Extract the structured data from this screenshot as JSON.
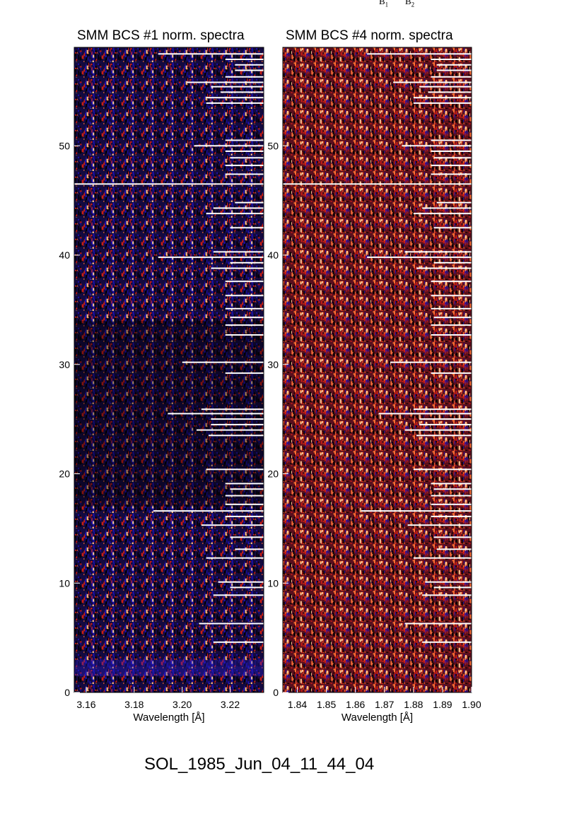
{
  "top_labels": {
    "b1": "B",
    "b1_sub": "1",
    "b2": "B",
    "b2_sub": "2"
  },
  "footer": "SOL_1985_Jun_04_11_44_04",
  "chart_data": [
    {
      "type": "heatmap",
      "title": "SMM BCS #1 norm. spectra",
      "xlabel": "Wavelength [Å]",
      "ylabel": "",
      "xlim": [
        3.155,
        3.234
      ],
      "ylim": [
        0,
        59
      ],
      "x_ticks": [
        3.16,
        3.18,
        3.2,
        3.22
      ],
      "x_tick_labels": [
        "3.16",
        "3.18",
        "3.20",
        "3.22"
      ],
      "y_ticks": [
        0,
        10,
        20,
        30,
        40,
        50
      ],
      "y_tick_labels": [
        "0",
        "10",
        "20",
        "30",
        "40",
        "50"
      ],
      "colors": [
        "#000000",
        "#1a10b0",
        "#c81e14",
        "#ff7030",
        "#ffc890"
      ],
      "missing_rows": [
        {
          "row": 58.4,
          "x_start": 3.19
        },
        {
          "row": 57.9,
          "x_start": 3.218
        },
        {
          "row": 57.4,
          "x_start": 3.222
        },
        {
          "row": 56.9,
          "x_start": 3.222
        },
        {
          "row": 56.3,
          "x_start": 3.218
        },
        {
          "row": 55.8,
          "x_start": 3.202
        },
        {
          "row": 55.4,
          "x_start": 3.212
        },
        {
          "row": 54.9,
          "x_start": 3.216
        },
        {
          "row": 54.4,
          "x_start": 3.21
        },
        {
          "row": 53.9,
          "x_start": 3.21
        },
        {
          "row": 50.5,
          "x_start": 3.218
        },
        {
          "row": 50.0,
          "x_start": 3.205
        },
        {
          "row": 49.5,
          "x_start": 3.218
        },
        {
          "row": 48.9,
          "x_start": 3.22
        },
        {
          "row": 48.2,
          "x_start": 3.218
        },
        {
          "row": 47.4,
          "x_start": 3.218
        },
        {
          "row": 46.5,
          "x_start": 3.155
        },
        {
          "row": 44.8,
          "x_start": 3.222
        },
        {
          "row": 44.3,
          "x_start": 3.213
        },
        {
          "row": 43.8,
          "x_start": 3.21
        },
        {
          "row": 42.5,
          "x_start": 3.22
        },
        {
          "row": 40.3,
          "x_start": 3.213
        },
        {
          "row": 39.8,
          "x_start": 3.19
        },
        {
          "row": 39.3,
          "x_start": 3.22
        },
        {
          "row": 38.8,
          "x_start": 3.212
        },
        {
          "row": 37.6,
          "x_start": 3.218
        },
        {
          "row": 36.3,
          "x_start": 3.218
        },
        {
          "row": 35.1,
          "x_start": 3.218
        },
        {
          "row": 34.3,
          "x_start": 3.22
        },
        {
          "row": 33.6,
          "x_start": 3.218
        },
        {
          "row": 32.7,
          "x_start": 3.218
        },
        {
          "row": 30.2,
          "x_start": 3.2
        },
        {
          "row": 29.2,
          "x_start": 3.218
        },
        {
          "row": 25.9,
          "x_start": 3.208
        },
        {
          "row": 25.5,
          "x_start": 3.194
        },
        {
          "row": 25.0,
          "x_start": 3.212
        },
        {
          "row": 24.5,
          "x_start": 3.212
        },
        {
          "row": 24.0,
          "x_start": 3.206
        },
        {
          "row": 23.5,
          "x_start": 3.211
        },
        {
          "row": 20.4,
          "x_start": 3.21
        },
        {
          "row": 19.1,
          "x_start": 3.218
        },
        {
          "row": 18.6,
          "x_start": 3.22
        },
        {
          "row": 18.0,
          "x_start": 3.218
        },
        {
          "row": 17.2,
          "x_start": 3.218
        },
        {
          "row": 16.6,
          "x_start": 3.188
        },
        {
          "row": 16.1,
          "x_start": 3.218
        },
        {
          "row": 15.3,
          "x_start": 3.208
        },
        {
          "row": 14.2,
          "x_start": 3.22
        },
        {
          "row": 13.1,
          "x_start": 3.222
        },
        {
          "row": 12.3,
          "x_start": 3.21
        },
        {
          "row": 10.1,
          "x_start": 3.215
        },
        {
          "row": 9.6,
          "x_start": 3.22
        },
        {
          "row": 8.9,
          "x_start": 3.213
        },
        {
          "row": 6.3,
          "x_start": 3.207
        },
        {
          "row": 4.6,
          "x_start": 3.213
        }
      ]
    },
    {
      "type": "heatmap",
      "title": "SMM BCS #4 norm. spectra",
      "xlabel": "Wavelength [Å]",
      "ylabel": "",
      "xlim": [
        1.835,
        1.9
      ],
      "ylim": [
        0,
        59
      ],
      "x_ticks": [
        1.84,
        1.85,
        1.86,
        1.87,
        1.88,
        1.89,
        1.9
      ],
      "x_tick_labels": [
        "1.84",
        "1.85",
        "1.86",
        "1.87",
        "1.88",
        "1.89",
        "1.90"
      ],
      "y_ticks": [
        0,
        10,
        20,
        30,
        40,
        50
      ],
      "y_tick_labels": [
        "0",
        "10",
        "20",
        "30",
        "40",
        "50"
      ],
      "colors": [
        "#000000",
        "#1a10b0",
        "#c81e14",
        "#ff7030",
        "#ffc890"
      ],
      "missing_rows": [
        {
          "row": 58.4,
          "x_start": 1.864
        },
        {
          "row": 57.9,
          "x_start": 1.886
        },
        {
          "row": 57.4,
          "x_start": 1.888
        },
        {
          "row": 56.9,
          "x_start": 1.888
        },
        {
          "row": 56.3,
          "x_start": 1.886
        },
        {
          "row": 55.8,
          "x_start": 1.873
        },
        {
          "row": 55.4,
          "x_start": 1.882
        },
        {
          "row": 54.9,
          "x_start": 1.885
        },
        {
          "row": 54.4,
          "x_start": 1.88
        },
        {
          "row": 53.9,
          "x_start": 1.88
        },
        {
          "row": 50.5,
          "x_start": 1.886
        },
        {
          "row": 50.0,
          "x_start": 1.876
        },
        {
          "row": 49.5,
          "x_start": 1.886
        },
        {
          "row": 48.9,
          "x_start": 1.887
        },
        {
          "row": 48.2,
          "x_start": 1.886
        },
        {
          "row": 47.4,
          "x_start": 1.886
        },
        {
          "row": 46.5,
          "x_start": 1.835
        },
        {
          "row": 44.8,
          "x_start": 1.888
        },
        {
          "row": 44.3,
          "x_start": 1.883
        },
        {
          "row": 43.8,
          "x_start": 1.88
        },
        {
          "row": 42.5,
          "x_start": 1.887
        },
        {
          "row": 40.3,
          "x_start": 1.877
        },
        {
          "row": 39.8,
          "x_start": 1.864
        },
        {
          "row": 39.3,
          "x_start": 1.887
        },
        {
          "row": 38.8,
          "x_start": 1.881
        },
        {
          "row": 37.6,
          "x_start": 1.886
        },
        {
          "row": 36.3,
          "x_start": 1.886
        },
        {
          "row": 35.1,
          "x_start": 1.886
        },
        {
          "row": 34.3,
          "x_start": 1.887
        },
        {
          "row": 33.6,
          "x_start": 1.886
        },
        {
          "row": 32.7,
          "x_start": 1.886
        },
        {
          "row": 30.2,
          "x_start": 1.872
        },
        {
          "row": 29.2,
          "x_start": 1.886
        },
        {
          "row": 25.9,
          "x_start": 1.88
        },
        {
          "row": 25.5,
          "x_start": 1.868
        },
        {
          "row": 25.0,
          "x_start": 1.882
        },
        {
          "row": 24.5,
          "x_start": 1.882
        },
        {
          "row": 24.0,
          "x_start": 1.877
        },
        {
          "row": 23.5,
          "x_start": 1.881
        },
        {
          "row": 20.4,
          "x_start": 1.88
        },
        {
          "row": 19.1,
          "x_start": 1.886
        },
        {
          "row": 18.6,
          "x_start": 1.887
        },
        {
          "row": 18.0,
          "x_start": 1.886
        },
        {
          "row": 17.2,
          "x_start": 1.886
        },
        {
          "row": 16.6,
          "x_start": 1.862
        },
        {
          "row": 16.1,
          "x_start": 1.886
        },
        {
          "row": 15.3,
          "x_start": 1.878
        },
        {
          "row": 14.2,
          "x_start": 1.887
        },
        {
          "row": 13.1,
          "x_start": 1.888
        },
        {
          "row": 12.3,
          "x_start": 1.88
        },
        {
          "row": 10.1,
          "x_start": 1.884
        },
        {
          "row": 9.6,
          "x_start": 1.887
        },
        {
          "row": 8.9,
          "x_start": 1.883
        },
        {
          "row": 6.3,
          "x_start": 1.877
        },
        {
          "row": 4.6,
          "x_start": 1.883
        }
      ]
    }
  ]
}
